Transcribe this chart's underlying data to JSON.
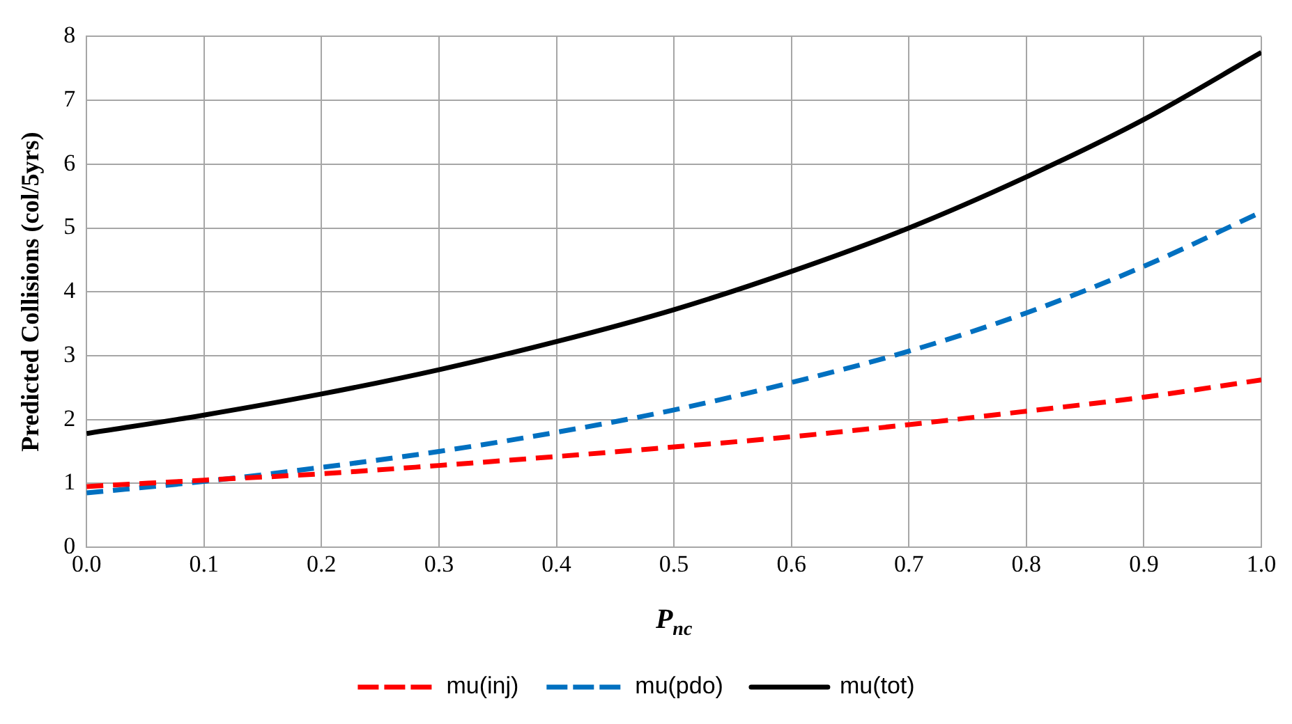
{
  "chart_data": {
    "type": "line",
    "xlabel": "P$_{nc}$",
    "ylabel": "Predicted Collisions (col/5yrs)",
    "x": [
      0,
      0.1,
      0.2,
      0.3,
      0.4,
      0.5,
      0.6,
      0.7,
      0.8,
      0.9,
      1.0
    ],
    "series": [
      {
        "name": "mu(inj)",
        "color": "#ff0000",
        "line_style": "dashed",
        "values": [
          0.95,
          1.05,
          1.15,
          1.28,
          1.42,
          1.57,
          1.73,
          1.92,
          2.13,
          2.35,
          2.62
        ]
      },
      {
        "name": "mu(pdo)",
        "color": "#0070c0",
        "line_style": "dashed",
        "values": [
          0.85,
          1.03,
          1.25,
          1.5,
          1.8,
          2.15,
          2.58,
          3.07,
          3.67,
          4.4,
          5.25
        ]
      },
      {
        "name": "mu(tot)",
        "color": "#000000",
        "line_style": "solid",
        "values": [
          1.78,
          2.07,
          2.4,
          2.78,
          3.22,
          3.72,
          4.32,
          5.0,
          5.8,
          6.7,
          7.75
        ]
      }
    ],
    "xlim": [
      0,
      1.0
    ],
    "xticks": [
      {
        "value": 0,
        "label": "0.0"
      },
      0.1,
      0.2,
      0.3,
      0.4,
      0.5,
      0.6,
      0.7,
      0.8,
      0.9,
      {
        "value": 1,
        "label": "1.0"
      }
    ],
    "ylim": [
      0,
      8
    ],
    "yticks": [
      0,
      1,
      2,
      3,
      4,
      5,
      6,
      7,
      8
    ],
    "grid": true,
    "legend": "bottom",
    "marker": "none"
  }
}
